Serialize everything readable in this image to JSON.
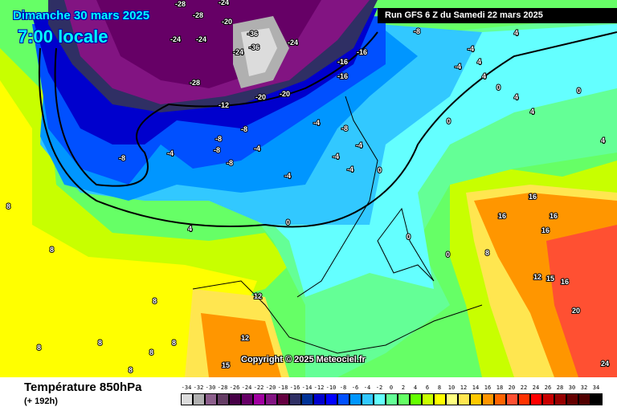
{
  "header": {
    "date": "Dimanche 30 mars 2025",
    "time": "7:00 locale",
    "run": "Run GFS 6 Z du Samedi 22 mars 2025"
  },
  "map": {
    "copyright": "Copyright © 2025 Meteociel.fr",
    "isotherm_labels": [
      "-28",
      "-28",
      "-24",
      "-24",
      "-20",
      "-24",
      "-36",
      "-24",
      "-36",
      "-24",
      "-28",
      "-16",
      "-12",
      "-20",
      "-20",
      "-16",
      "-16",
      "-8",
      "-8",
      "-8",
      "-4",
      "-8",
      "-8",
      "-4",
      "-8",
      "-4",
      "-4",
      "-4",
      "-4",
      "0",
      "0",
      "0",
      "4",
      "4",
      "4",
      "4",
      "8",
      "8",
      "8",
      "8",
      "8",
      "8",
      "8",
      "12",
      "12",
      "15",
      "16",
      "16",
      "16",
      "16",
      "12",
      "15",
      "16",
      "20",
      "24",
      "8",
      "8",
      "0",
      "0",
      "4",
      "0",
      "4",
      "-4",
      "4",
      "0",
      "-8",
      "-4",
      "-4"
    ]
  },
  "footer": {
    "title": "Température 850hPa",
    "subtitle": "(+ 192h)"
  },
  "legend": {
    "ticks": [
      "-34",
      "-32",
      "-30",
      "-28",
      "-26",
      "-24",
      "-22",
      "-20",
      "-18",
      "-16",
      "-14",
      "-12",
      "-10",
      "-8",
      "-6",
      "-4",
      "-2",
      "0",
      "2",
      "4",
      "6",
      "8",
      "10",
      "12",
      "14",
      "16",
      "18",
      "20",
      "22",
      "24",
      "26",
      "28",
      "30",
      "32",
      "34"
    ],
    "colors": [
      "#dcdcdc",
      "#b0b0b0",
      "#8c5f8c",
      "#643c64",
      "#460046",
      "#660066",
      "#a000a0",
      "#821482",
      "#640040",
      "#2f2f64",
      "#003296",
      "#0000cd",
      "#0000ff",
      "#0050ff",
      "#0096ff",
      "#32c8ff",
      "#64ffff",
      "#64ff96",
      "#64ff64",
      "#64ff00",
      "#c8ff00",
      "#ffff00",
      "#ffff80",
      "#ffe650",
      "#ffc800",
      "#ff9600",
      "#ff6400",
      "#ff5032",
      "#ff3200",
      "#ff0000",
      "#c80000",
      "#960000",
      "#640000",
      "#500000",
      "#000000"
    ]
  }
}
